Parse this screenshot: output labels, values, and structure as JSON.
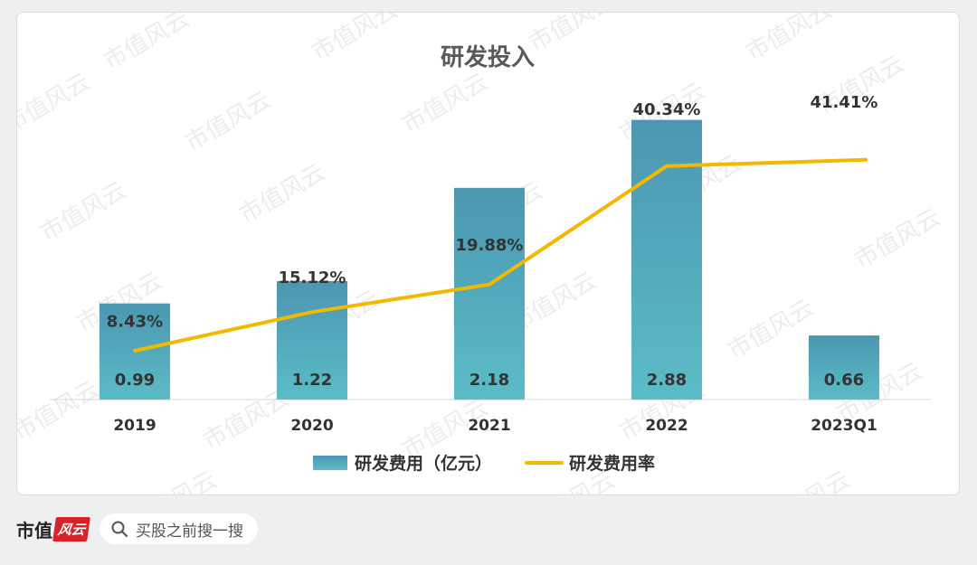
{
  "chart_data": {
    "type": "bar",
    "title": "研发投入",
    "categories": [
      "2019",
      "2020",
      "2021",
      "2022",
      "2023Q1"
    ],
    "series": [
      {
        "name": "研发费用（亿元）",
        "type": "bar",
        "values": [
          0.99,
          1.22,
          2.18,
          2.88,
          0.66
        ],
        "labels": [
          "0.99",
          "1.22",
          "2.18",
          "2.88",
          "0.66"
        ]
      },
      {
        "name": "研发费用率",
        "type": "line",
        "values": [
          8.43,
          15.12,
          19.88,
          40.34,
          41.41
        ],
        "labels": [
          "8.43%",
          "15.12%",
          "19.88%",
          "40.34%",
          "41.41%"
        ]
      }
    ],
    "bar_ylim": [
      0,
      3.1
    ],
    "line_ylim": [
      0,
      52
    ],
    "legend_position": "bottom",
    "grid": false,
    "colors": {
      "bar_top": "#4b97b1",
      "bar_bottom": "#5bbcc6",
      "line": "#f5b800"
    }
  },
  "watermark": "市值风云",
  "footer": {
    "brand": "市值",
    "brand_mark": "风云",
    "search_icon": "search-icon",
    "search_text": "买股之前搜一搜"
  }
}
